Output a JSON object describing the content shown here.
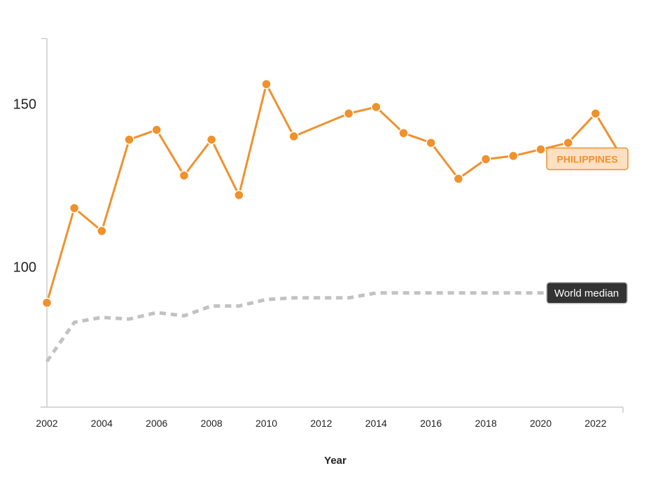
{
  "chart_data": {
    "type": "line",
    "xlabel": "Year",
    "ylabel": "",
    "x_ticks": [
      "2002",
      "2004",
      "2006",
      "2008",
      "2010",
      "2012",
      "2014",
      "2016",
      "2018",
      "2020",
      "2022"
    ],
    "y_ticks": [
      "100",
      "150"
    ],
    "ylim": [
      57,
      170
    ],
    "xlim": [
      2002,
      2023
    ],
    "grid": false,
    "series": [
      {
        "name": "PHILIPPINES",
        "color": "#f0912c",
        "style": "solid-with-markers",
        "points": [
          [
            2002,
            89
          ],
          [
            2003,
            118
          ],
          [
            2004,
            111
          ],
          [
            2005,
            139
          ],
          [
            2006,
            142
          ],
          [
            2007,
            128
          ],
          [
            2008,
            139
          ],
          [
            2009,
            122
          ],
          [
            2010,
            156
          ],
          [
            2011,
            140
          ],
          [
            2013,
            147
          ],
          [
            2014,
            149
          ],
          [
            2015,
            141
          ],
          [
            2016,
            138
          ],
          [
            2017,
            127
          ],
          [
            2018,
            133
          ],
          [
            2019,
            134
          ],
          [
            2020,
            136
          ],
          [
            2021,
            138
          ],
          [
            2022,
            147
          ],
          [
            2023,
            133
          ]
        ]
      },
      {
        "name": "World median",
        "color": "#c2c2c2",
        "style": "dashed",
        "points": [
          [
            2002,
            71
          ],
          [
            2003,
            83
          ],
          [
            2004,
            84.5
          ],
          [
            2005,
            84
          ],
          [
            2006,
            86
          ],
          [
            2007,
            85
          ],
          [
            2008,
            88
          ],
          [
            2009,
            88
          ],
          [
            2010,
            90
          ],
          [
            2011,
            90.5
          ],
          [
            2012,
            90.5
          ],
          [
            2013,
            90.5
          ],
          [
            2014,
            92
          ],
          [
            2015,
            92
          ],
          [
            2016,
            92
          ],
          [
            2017,
            92
          ],
          [
            2018,
            92
          ],
          [
            2019,
            92
          ],
          [
            2020,
            92
          ],
          [
            2021,
            92
          ],
          [
            2022,
            92
          ],
          [
            2023,
            92
          ]
        ]
      }
    ]
  }
}
